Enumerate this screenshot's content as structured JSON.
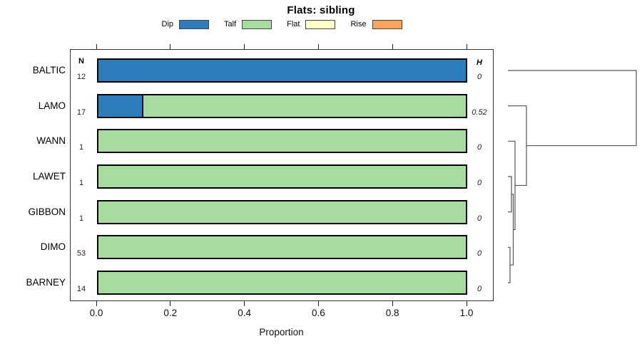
{
  "title": "Flats: sibling",
  "legend": {
    "items": [
      {
        "label": "Dip",
        "color": "#2d7dbb"
      },
      {
        "label": "Talf",
        "color": "#a8dba0"
      },
      {
        "label": "Flat",
        "color": "#ffffc9"
      },
      {
        "label": "Rise",
        "color": "#f9a65b"
      }
    ]
  },
  "columns": {
    "n_header": "N",
    "h_header": "H"
  },
  "chart_data": {
    "type": "bar",
    "orientation": "horizontal",
    "stacked": true,
    "title": "Flats: sibling",
    "xlabel": "Proportion",
    "xlim": [
      0,
      1.08
    ],
    "xticks": [
      0,
      0.2,
      0.4,
      0.6,
      0.8,
      1.0
    ],
    "xtick_labels": [
      "0.0",
      "0.2",
      "0.4",
      "0.6",
      "0.8",
      "1.0"
    ],
    "grid": false,
    "legend_position": "top",
    "categories": [
      "BALTIC",
      "LAMO",
      "WANN",
      "LAWET",
      "GIBBON",
      "DIMO",
      "BARNEY"
    ],
    "series": [
      {
        "name": "Dip",
        "color": "#2d7dbb",
        "values": [
          1.0,
          0.118,
          0,
          0,
          0,
          0,
          0
        ]
      },
      {
        "name": "Talf",
        "color": "#a8dba0",
        "values": [
          0,
          0.882,
          1.0,
          1.0,
          1.0,
          1.0,
          1.0
        ]
      },
      {
        "name": "Flat",
        "color": "#ffffc9",
        "values": [
          0,
          0,
          0,
          0,
          0,
          0,
          0
        ]
      },
      {
        "name": "Rise",
        "color": "#f9a65b",
        "values": [
          0,
          0,
          0,
          0,
          0,
          0,
          0
        ]
      }
    ],
    "n_values": [
      "12",
      "17",
      "1",
      "1",
      "1",
      "53",
      "14"
    ],
    "h_values": [
      "0",
      "0.52",
      "0",
      "0",
      "0",
      "0",
      "0"
    ],
    "dendrogram": {
      "leaves": [
        "BALTIC",
        "LAMO",
        "WANN",
        "LAWET",
        "GIBBON",
        "DIMO",
        "BARNEY"
      ],
      "merges": [
        {
          "a": "LAWET",
          "b": "GIBBON",
          "h": 5
        },
        {
          "a": "DIMO",
          "b": "BARNEY",
          "h": 3
        },
        {
          "a": "@0",
          "b": "@1",
          "h": 7.5
        },
        {
          "a": "WANN",
          "b": "@2",
          "h": 10
        },
        {
          "a": "LAMO",
          "b": "@3",
          "h": 26
        },
        {
          "a": "BALTIC",
          "b": "@4",
          "h": 180
        }
      ]
    }
  }
}
